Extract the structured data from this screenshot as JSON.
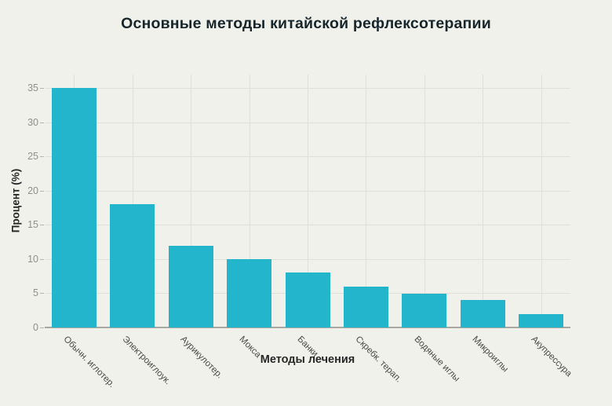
{
  "chart_data": {
    "type": "bar",
    "title": "Основные методы китайской рефлексотерапии",
    "xlabel": "Методы лечения",
    "ylabel": "Процент (%)",
    "categories": [
      "Обычн. иглотер.",
      "Электроиглоук.",
      "Аурикулотер.",
      "Мокса",
      "Банки",
      "Скребк. терап.",
      "Водяные иглы",
      "Микроиглы",
      "Акупрессура"
    ],
    "values": [
      35,
      18,
      12,
      10,
      8,
      6,
      5,
      4,
      2
    ],
    "yticks": [
      0,
      5,
      10,
      15,
      20,
      25,
      30,
      35
    ],
    "ylim": [
      0,
      37
    ],
    "grid": true,
    "legend": "none",
    "colors": {
      "bar": "#23b5cb",
      "background": "#f1f1eb",
      "grid_line": "#e0e0d8",
      "axis_line": "#a8a8a2",
      "tick_mark": "#b5b5af",
      "title_text": "#16262c",
      "axis_title_text": "#272727",
      "y_tick_text": "#8f8f8f",
      "x_tick_text": "#4a4a4a"
    }
  }
}
